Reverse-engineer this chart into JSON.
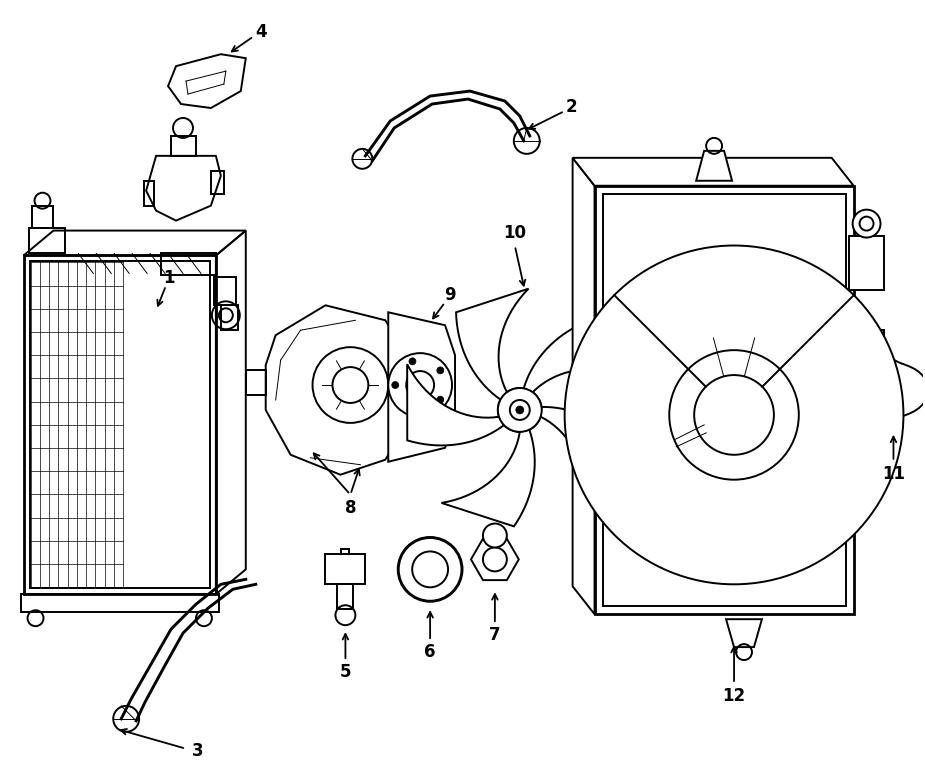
{
  "bg_color": "#ffffff",
  "line_color": "#000000",
  "lw": 1.4,
  "lw_thin": 0.7,
  "lw_thick": 2.0
}
